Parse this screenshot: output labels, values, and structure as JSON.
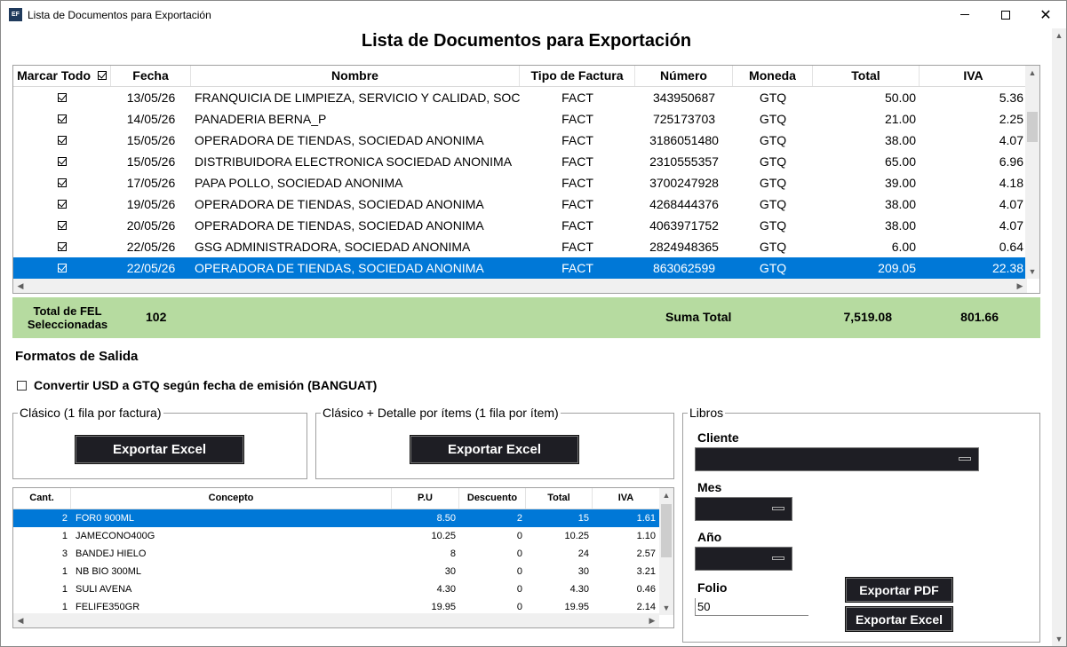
{
  "window": {
    "title": "Lista de Documentos para Exportación",
    "icon_text": "EF"
  },
  "page_title": "Lista de Documentos para Exportación",
  "grid": {
    "headers": [
      "Marcar Todo",
      "Fecha",
      "Nombre",
      "Tipo de Factura",
      "Número",
      "Moneda",
      "Total",
      "IVA"
    ],
    "rows": [
      {
        "fecha": "13/05/26",
        "nombre": "FRANQUICIA DE LIMPIEZA, SERVICIO Y CALIDAD, SOCIEDAD ANONIMA",
        "tipo": "FACT",
        "numero": "343950687",
        "moneda": "GTQ",
        "total": "50.00",
        "iva": "5.36",
        "checked": true,
        "selected": false
      },
      {
        "fecha": "14/05/26",
        "nombre": "PANADERIA BERNA_P",
        "tipo": "FACT",
        "numero": "725173703",
        "moneda": "GTQ",
        "total": "21.00",
        "iva": "2.25",
        "checked": true,
        "selected": false
      },
      {
        "fecha": "15/05/26",
        "nombre": "OPERADORA DE TIENDAS, SOCIEDAD ANONIMA",
        "tipo": "FACT",
        "numero": "3186051480",
        "moneda": "GTQ",
        "total": "38.00",
        "iva": "4.07",
        "checked": true,
        "selected": false
      },
      {
        "fecha": "15/05/26",
        "nombre": "DISTRIBUIDORA ELECTRONICA SOCIEDAD ANONIMA",
        "tipo": "FACT",
        "numero": "2310555357",
        "moneda": "GTQ",
        "total": "65.00",
        "iva": "6.96",
        "checked": true,
        "selected": false
      },
      {
        "fecha": "17/05/26",
        "nombre": "PAPA POLLO, SOCIEDAD ANONIMA",
        "tipo": "FACT",
        "numero": "3700247928",
        "moneda": "GTQ",
        "total": "39.00",
        "iva": "4.18",
        "checked": true,
        "selected": false
      },
      {
        "fecha": "19/05/26",
        "nombre": "OPERADORA DE TIENDAS, SOCIEDAD ANONIMA",
        "tipo": "FACT",
        "numero": "4268444376",
        "moneda": "GTQ",
        "total": "38.00",
        "iva": "4.07",
        "checked": true,
        "selected": false
      },
      {
        "fecha": "20/05/26",
        "nombre": "OPERADORA DE TIENDAS, SOCIEDAD ANONIMA",
        "tipo": "FACT",
        "numero": "4063971752",
        "moneda": "GTQ",
        "total": "38.00",
        "iva": "4.07",
        "checked": true,
        "selected": false
      },
      {
        "fecha": "22/05/26",
        "nombre": "GSG ADMINISTRADORA, SOCIEDAD ANONIMA",
        "tipo": "FACT",
        "numero": "2824948365",
        "moneda": "GTQ",
        "total": "6.00",
        "iva": "0.64",
        "checked": true,
        "selected": false
      },
      {
        "fecha": "22/05/26",
        "nombre": "OPERADORA DE TIENDAS, SOCIEDAD ANONIMA",
        "tipo": "FACT",
        "numero": "863062599",
        "moneda": "GTQ",
        "total": "209.05",
        "iva": "22.38",
        "checked": true,
        "selected": true
      }
    ]
  },
  "summary": {
    "label": "Total de FEL Seleccionadas",
    "count": "102",
    "suma_label": "Suma Total",
    "total": "7,519.08",
    "iva": "801.66",
    "color": "#b6dba0"
  },
  "formatos": {
    "title": "Formatos de Salida",
    "convert_label": "Convertir USD a GTQ según fecha de emisión (BANGUAT)",
    "clasico_title": "Clásico (1 fila por factura)",
    "clasico_button": "Exportar Excel",
    "detalle_title": "Clásico + Detalle por ítems (1 fila por ítem)",
    "detalle_button": "Exportar Excel"
  },
  "detail": {
    "headers": [
      "Cant.",
      "Concepto",
      "P.U",
      "Descuento",
      "Total",
      "IVA"
    ],
    "rows": [
      {
        "cant": "2",
        "concepto": "FOR0 900ML",
        "pu": "8.50",
        "desc": "2",
        "total": "15",
        "iva": "1.61",
        "selected": true
      },
      {
        "cant": "1",
        "concepto": "JAMECONO400G",
        "pu": "10.25",
        "desc": "0",
        "total": "10.25",
        "iva": "1.10",
        "selected": false
      },
      {
        "cant": "3",
        "concepto": "BANDEJ HIELO",
        "pu": "8",
        "desc": "0",
        "total": "24",
        "iva": "2.57",
        "selected": false
      },
      {
        "cant": "1",
        "concepto": "NB BIO 300ML",
        "pu": "30",
        "desc": "0",
        "total": "30",
        "iva": "3.21",
        "selected": false
      },
      {
        "cant": "1",
        "concepto": "SULI AVENA",
        "pu": "4.30",
        "desc": "0",
        "total": "4.30",
        "iva": "0.46",
        "selected": false
      },
      {
        "cant": "1",
        "concepto": "FELIFE350GR",
        "pu": "19.95",
        "desc": "0",
        "total": "19.95",
        "iva": "2.14",
        "selected": false
      }
    ]
  },
  "libros": {
    "title": "Libros",
    "cliente_label": "Cliente",
    "mes_label": "Mes",
    "anio_label": "Año",
    "folio_label": "Folio",
    "folio_value": "50",
    "pdf_button": "Exportar PDF",
    "excel_button": "Exportar Excel"
  },
  "colors": {
    "selection": "#0078d7",
    "dark_button": "#1e1e24"
  }
}
